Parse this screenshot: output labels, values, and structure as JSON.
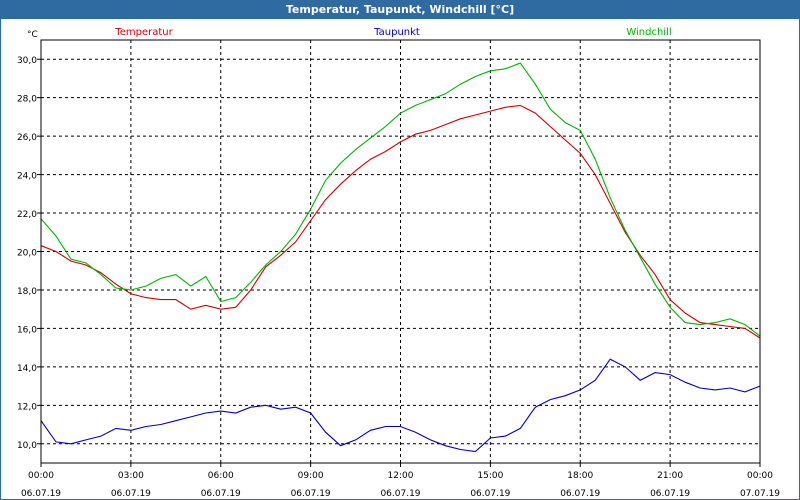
{
  "window": {
    "title": "Temperatur, Taupunkt, Windchill [°C]"
  },
  "chart_data": {
    "type": "line",
    "title": "Temperatur, Taupunkt, Windchill [°C]",
    "ylabel": "°C",
    "ylim": [
      9,
      31
    ],
    "y_ticks": [
      "30,0",
      "28,0",
      "26,0",
      "24,0",
      "22,0",
      "20,0",
      "18,0",
      "16,0",
      "14,0",
      "12,0",
      "10,0"
    ],
    "x_ticks": [
      {
        "time": "00:00",
        "date": "06.07.19"
      },
      {
        "time": "03:00",
        "date": "06.07.19"
      },
      {
        "time": "06:00",
        "date": "06.07.19"
      },
      {
        "time": "09:00",
        "date": "06.07.19"
      },
      {
        "time": "12:00",
        "date": "06.07.19"
      },
      {
        "time": "15:00",
        "date": "06.07.19"
      },
      {
        "time": "18:00",
        "date": "06.07.19"
      },
      {
        "time": "21:00",
        "date": "06.07.19"
      },
      {
        "time": "00:00",
        "date": "07.07.19"
      }
    ],
    "x_unit": "hours from 06.07.19 00:00",
    "grid": true,
    "series": [
      {
        "name": "Temperatur",
        "color": "#d40000",
        "points": [
          [
            0,
            20.3
          ],
          [
            0.5,
            20.0
          ],
          [
            1,
            19.5
          ],
          [
            1.5,
            19.3
          ],
          [
            2,
            18.9
          ],
          [
            2.5,
            18.3
          ],
          [
            3,
            17.8
          ],
          [
            3.5,
            17.6
          ],
          [
            4,
            17.5
          ],
          [
            4.5,
            17.5
          ],
          [
            5,
            17.0
          ],
          [
            5.5,
            17.2
          ],
          [
            6,
            17.0
          ],
          [
            6.5,
            17.1
          ],
          [
            7,
            18.0
          ],
          [
            7.5,
            19.2
          ],
          [
            8,
            19.8
          ],
          [
            8.5,
            20.5
          ],
          [
            9,
            21.6
          ],
          [
            9.5,
            22.7
          ],
          [
            10,
            23.5
          ],
          [
            10.5,
            24.2
          ],
          [
            11,
            24.8
          ],
          [
            11.5,
            25.2
          ],
          [
            12,
            25.7
          ],
          [
            12.5,
            26.1
          ],
          [
            13,
            26.3
          ],
          [
            13.5,
            26.6
          ],
          [
            14,
            26.9
          ],
          [
            14.5,
            27.1
          ],
          [
            15,
            27.3
          ],
          [
            15.5,
            27.5
          ],
          [
            16,
            27.6
          ],
          [
            16.5,
            27.2
          ],
          [
            17,
            26.5
          ],
          [
            17.5,
            25.8
          ],
          [
            18,
            25.1
          ],
          [
            18.5,
            24.0
          ],
          [
            19,
            22.5
          ],
          [
            19.5,
            21.0
          ],
          [
            20,
            19.8
          ],
          [
            20.5,
            18.8
          ],
          [
            21,
            17.5
          ],
          [
            21.5,
            16.8
          ],
          [
            22,
            16.3
          ],
          [
            22.5,
            16.2
          ],
          [
            23,
            16.1
          ],
          [
            23.5,
            16.0
          ],
          [
            24,
            15.5
          ]
        ]
      },
      {
        "name": "Taupunkt",
        "color": "#0000c8",
        "points": [
          [
            0,
            11.2
          ],
          [
            0.5,
            10.1
          ],
          [
            1,
            10.0
          ],
          [
            1.5,
            10.2
          ],
          [
            2,
            10.4
          ],
          [
            2.5,
            10.8
          ],
          [
            3,
            10.7
          ],
          [
            3.5,
            10.9
          ],
          [
            4,
            11.0
          ],
          [
            4.5,
            11.2
          ],
          [
            5,
            11.4
          ],
          [
            5.5,
            11.6
          ],
          [
            6,
            11.7
          ],
          [
            6.5,
            11.6
          ],
          [
            7,
            11.9
          ],
          [
            7.5,
            12.0
          ],
          [
            8,
            11.8
          ],
          [
            8.5,
            11.9
          ],
          [
            9,
            11.6
          ],
          [
            9.5,
            10.6
          ],
          [
            10,
            9.9
          ],
          [
            10.5,
            10.2
          ],
          [
            11,
            10.7
          ],
          [
            11.5,
            10.9
          ],
          [
            12,
            10.9
          ],
          [
            12.5,
            10.6
          ],
          [
            13,
            10.2
          ],
          [
            13.5,
            9.9
          ],
          [
            14,
            9.7
          ],
          [
            14.5,
            9.6
          ],
          [
            15,
            10.3
          ],
          [
            15.5,
            10.4
          ],
          [
            16,
            10.8
          ],
          [
            16.5,
            11.9
          ],
          [
            17,
            12.3
          ],
          [
            17.5,
            12.5
          ],
          [
            18,
            12.8
          ],
          [
            18.5,
            13.3
          ],
          [
            19,
            14.4
          ],
          [
            19.5,
            14.0
          ],
          [
            20,
            13.3
          ],
          [
            20.5,
            13.7
          ],
          [
            21,
            13.6
          ],
          [
            21.5,
            13.2
          ],
          [
            22,
            12.9
          ],
          [
            22.5,
            12.8
          ],
          [
            23,
            12.9
          ],
          [
            23.5,
            12.7
          ],
          [
            24,
            13.0
          ]
        ]
      },
      {
        "name": "Windchill",
        "color": "#00b400",
        "points": [
          [
            0,
            21.7
          ],
          [
            0.5,
            20.8
          ],
          [
            1,
            19.6
          ],
          [
            1.5,
            19.4
          ],
          [
            2,
            18.8
          ],
          [
            2.5,
            18.1
          ],
          [
            3,
            18.0
          ],
          [
            3.5,
            18.2
          ],
          [
            4,
            18.6
          ],
          [
            4.5,
            18.8
          ],
          [
            5,
            18.2
          ],
          [
            5.5,
            18.7
          ],
          [
            6,
            17.4
          ],
          [
            6.5,
            17.6
          ],
          [
            7,
            18.4
          ],
          [
            7.5,
            19.3
          ],
          [
            8,
            20.0
          ],
          [
            8.5,
            20.9
          ],
          [
            9,
            22.2
          ],
          [
            9.5,
            23.7
          ],
          [
            10,
            24.6
          ],
          [
            10.5,
            25.3
          ],
          [
            11,
            25.9
          ],
          [
            11.5,
            26.5
          ],
          [
            12,
            27.2
          ],
          [
            12.5,
            27.6
          ],
          [
            13,
            27.9
          ],
          [
            13.5,
            28.2
          ],
          [
            14,
            28.7
          ],
          [
            14.5,
            29.1
          ],
          [
            15,
            29.4
          ],
          [
            15.5,
            29.5
          ],
          [
            16,
            29.8
          ],
          [
            16.5,
            28.7
          ],
          [
            17,
            27.4
          ],
          [
            17.5,
            26.7
          ],
          [
            18,
            26.3
          ],
          [
            18.5,
            24.8
          ],
          [
            19,
            22.8
          ],
          [
            19.5,
            21.1
          ],
          [
            20,
            19.7
          ],
          [
            20.5,
            18.3
          ],
          [
            21,
            17.1
          ],
          [
            21.5,
            16.3
          ],
          [
            22,
            16.2
          ],
          [
            22.5,
            16.3
          ],
          [
            23,
            16.5
          ],
          [
            23.5,
            16.2
          ],
          [
            24,
            15.6
          ]
        ]
      }
    ]
  }
}
